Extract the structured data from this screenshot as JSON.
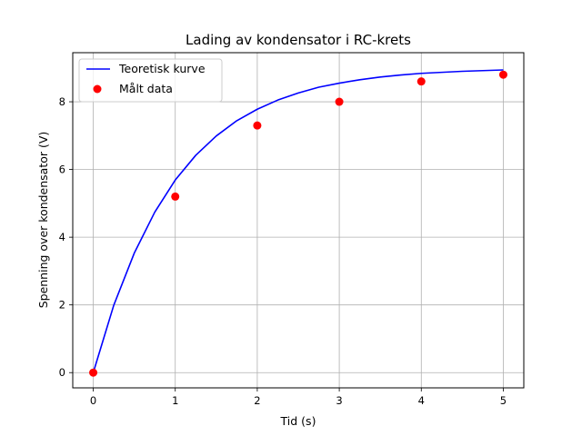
{
  "chart_data": {
    "type": "line",
    "title": "Lading av kondensator i RC-krets",
    "xlabel": "Tid (s)",
    "ylabel": "Spenning over kondensator (V)",
    "xlim": [
      -0.25,
      5.25
    ],
    "ylim": [
      -0.45,
      9.45
    ],
    "xticks": [
      0,
      1,
      2,
      3,
      4,
      5
    ],
    "yticks": [
      0,
      2,
      4,
      6,
      8
    ],
    "xtick_labels": [
      "0",
      "1",
      "2",
      "3",
      "4",
      "5"
    ],
    "ytick_labels": [
      "0",
      "2",
      "4",
      "6",
      "8"
    ],
    "grid": true,
    "legend_position": "top-left",
    "series": [
      {
        "name": "Teoretisk kurve",
        "kind": "line",
        "color": "#0000ff",
        "x": [
          0,
          0.25,
          0.5,
          0.75,
          1,
          1.25,
          1.5,
          1.75,
          2,
          2.25,
          2.5,
          2.75,
          3,
          3.25,
          3.5,
          3.75,
          4,
          4.25,
          4.5,
          4.75,
          5
        ],
        "values": [
          0,
          1.99,
          3.53,
          4.74,
          5.69,
          6.42,
          6.99,
          7.44,
          7.78,
          8.05,
          8.26,
          8.43,
          8.55,
          8.65,
          8.73,
          8.79,
          8.84,
          8.87,
          8.9,
          8.92,
          8.94
        ]
      },
      {
        "name": "Målt data",
        "kind": "scatter",
        "color": "#ff0000",
        "x": [
          0,
          1,
          2,
          3,
          4,
          5
        ],
        "values": [
          0,
          5.2,
          7.3,
          8.0,
          8.6,
          8.8
        ]
      }
    ]
  }
}
